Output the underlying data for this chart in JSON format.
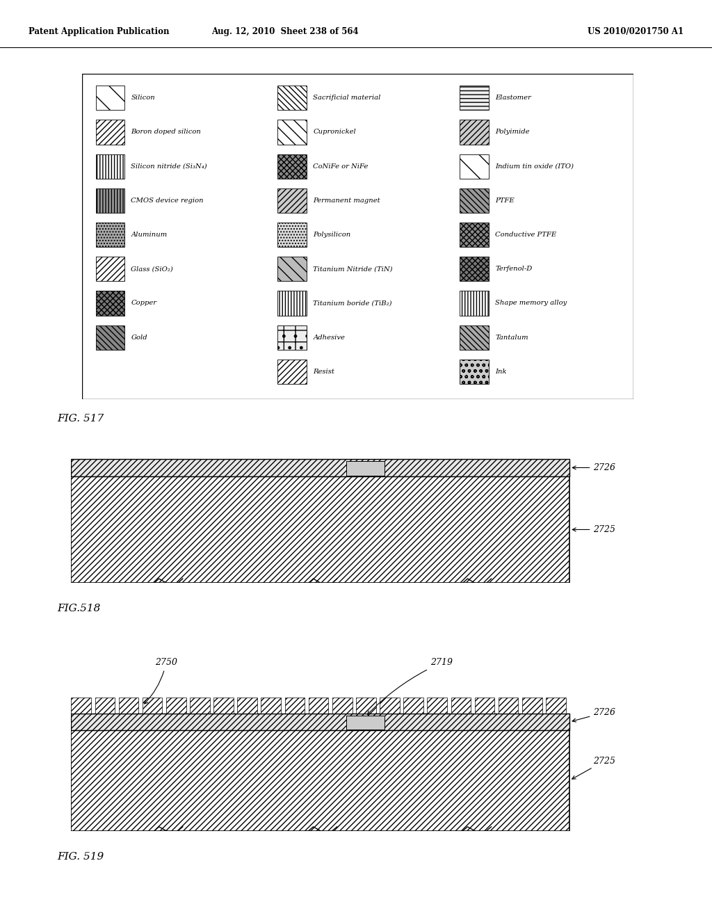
{
  "header_left": "Patent Application Publication",
  "header_mid": "Aug. 12, 2010  Sheet 238 of 564",
  "header_right": "US 2010/0201750 A1",
  "fig517_label": "FIG. 517",
  "fig518_label": "FIG.518",
  "fig519_label": "FIG. 519",
  "legend_items_col1": [
    [
      "silicon_white",
      "Silicon"
    ],
    [
      "boron_doped",
      "Boron doped silicon"
    ],
    [
      "silicon_nitride",
      "Silicon nitride (Si₃N₄)"
    ],
    [
      "cmos",
      "CMOS device region"
    ],
    [
      "aluminum",
      "Aluminum"
    ],
    [
      "glass",
      "Glass (SiO₂)"
    ],
    [
      "copper",
      "Copper"
    ],
    [
      "gold",
      "Gold"
    ]
  ],
  "legend_items_col2": [
    [
      "sacrificial",
      "Sacrificial material"
    ],
    [
      "cupronickel",
      "Cupronickel"
    ],
    [
      "conife",
      "CoNiFe or NiFe"
    ],
    [
      "permanent_magnet",
      "Permanent magnet"
    ],
    [
      "polysilicon",
      "Polysilicon"
    ],
    [
      "titanium_nitride",
      "Titanium Nitride (TiN)"
    ],
    [
      "titanium_boride",
      "Titanium boride (TiB₂)"
    ],
    [
      "adhesive",
      "Adhesive"
    ],
    [
      "resist",
      "Resist"
    ]
  ],
  "legend_items_col3": [
    [
      "elastomer",
      "Elastomer"
    ],
    [
      "polyimide",
      "Polyimide"
    ],
    [
      "indium_tin_oxide",
      "Indium tin oxide (ITO)"
    ],
    [
      "ptfe",
      "PTFE"
    ],
    [
      "conductive_ptfe",
      "Conductive PTFE"
    ],
    [
      "terfenol",
      "Terfenol-D"
    ],
    [
      "shape_memory",
      "Shape memory alloy"
    ],
    [
      "tantalum",
      "Tantalum"
    ],
    [
      "ink",
      "Ink"
    ]
  ],
  "label_2726_518": "2726",
  "label_2725_518": "2725",
  "label_2750": "2750",
  "label_2719": "2719",
  "label_2726_519": "2726",
  "label_2725_519": "2725"
}
